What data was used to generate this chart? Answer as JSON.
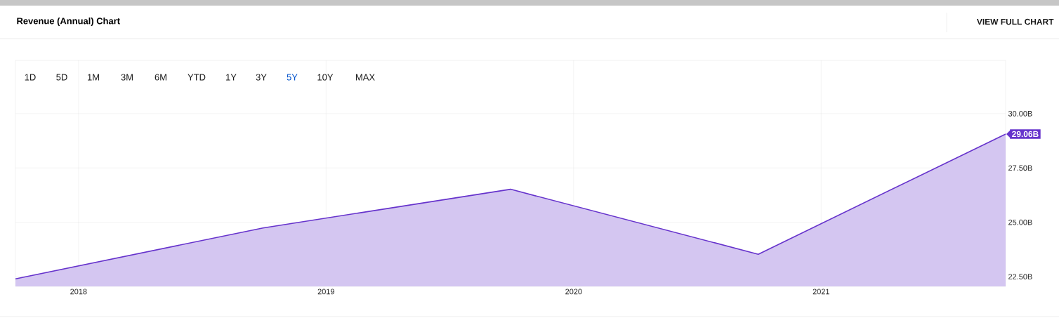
{
  "chart_data": {
    "type": "area",
    "title": "Revenue (Annual) Chart",
    "x": [
      "2017-09-30",
      "2018-09-30",
      "2019-09-30",
      "2020-09-30",
      "2021-09-30"
    ],
    "series": [
      {
        "color": "#6633cc",
        "values": [
          22.4,
          24.74,
          26.52,
          23.53,
          29.06
        ]
      }
    ],
    "xlim": [
      "2017-09-30",
      "2021-09-30"
    ],
    "xticks": [
      {
        "value": "2018-01-01",
        "label": "2018"
      },
      {
        "value": "2019-01-01",
        "label": "2019"
      },
      {
        "value": "2020-01-01",
        "label": "2020"
      },
      {
        "value": "2021-01-01",
        "label": "2021"
      }
    ],
    "ylim": [
      22.05,
      32.45
    ],
    "yticks": [
      {
        "value": 22.5,
        "label": "22.50B"
      },
      {
        "value": 25,
        "label": "25.00B"
      },
      {
        "value": 27.5,
        "label": "27.50B"
      },
      {
        "value": 30,
        "label": "30.00B"
      }
    ],
    "grid": true,
    "annotations": [
      "1D",
      "5D",
      "1M",
      "3M",
      "6M",
      "YTD",
      "1Y",
      "3Y",
      "5Y",
      "10Y",
      "MAX",
      "VIEW FULL CHART",
      {
        "text": "29.06B",
        "x": "2021-09-30",
        "y": 29.06
      }
    ]
  }
}
